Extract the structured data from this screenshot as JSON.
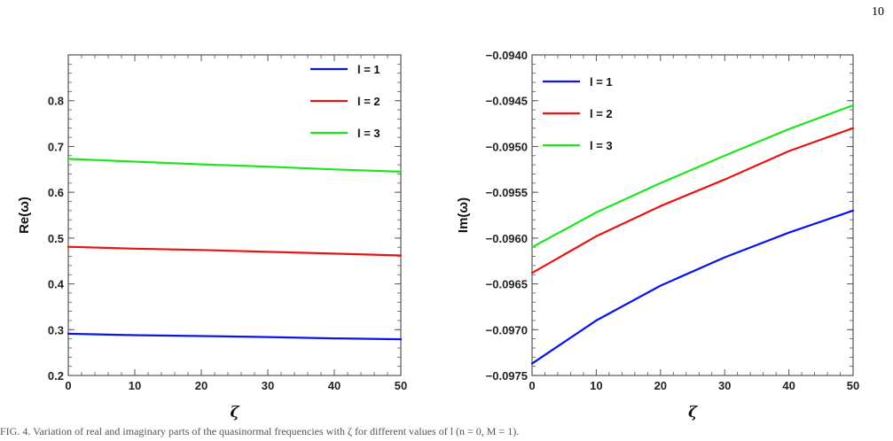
{
  "page": {
    "number": "10",
    "caption": "FIG. 4. Variation of real and imaginary parts of the quasinormal frequencies with ζ for different values of l (n = 0, M = 1)."
  },
  "colors": {
    "l1": "#0a14e6",
    "l2": "#e81414",
    "l3": "#1ee61e",
    "axis": "#555555"
  },
  "chart_data": [
    {
      "type": "line",
      "title": "",
      "xlabel": "ζ",
      "ylabel": "Re(ω)",
      "xlim": [
        0,
        50
      ],
      "ylim": [
        0.2,
        0.9
      ],
      "xticks": [
        0,
        10,
        20,
        30,
        40,
        50
      ],
      "xtick_labels": [
        "0",
        "10",
        "20",
        "30",
        "40",
        "50"
      ],
      "yticks": [
        0.2,
        0.3,
        0.4,
        0.5,
        0.6,
        0.7,
        0.8
      ],
      "ytick_labels": [
        "0.2",
        "0.3",
        "0.4",
        "0.5",
        "0.6",
        "0.7",
        "0.8"
      ],
      "grid": false,
      "legend_position": "top-right",
      "series": [
        {
          "name": "l = 1",
          "color": "#0a14e6",
          "x": [
            0,
            10,
            20,
            30,
            40,
            50
          ],
          "y": [
            0.291,
            0.288,
            0.286,
            0.284,
            0.281,
            0.279
          ]
        },
        {
          "name": "l = 2",
          "color": "#e81414",
          "x": [
            0,
            10,
            20,
            30,
            40,
            50
          ],
          "y": [
            0.481,
            0.477,
            0.474,
            0.47,
            0.466,
            0.462
          ]
        },
        {
          "name": "l = 3",
          "color": "#1ee61e",
          "x": [
            0,
            10,
            20,
            30,
            40,
            50
          ],
          "y": [
            0.673,
            0.667,
            0.661,
            0.656,
            0.65,
            0.645
          ]
        }
      ]
    },
    {
      "type": "line",
      "title": "",
      "xlabel": "ζ",
      "ylabel": "Im(ω)",
      "xlim": [
        0,
        50
      ],
      "ylim": [
        -0.0975,
        -0.094
      ],
      "xticks": [
        0,
        10,
        20,
        30,
        40,
        50
      ],
      "xtick_labels": [
        "0",
        "10",
        "20",
        "30",
        "40",
        "50"
      ],
      "yticks": [
        -0.0975,
        -0.097,
        -0.0965,
        -0.096,
        -0.0955,
        -0.095,
        -0.0945,
        -0.094
      ],
      "ytick_labels": [
        "−0.0975",
        "−0.0970",
        "−0.0965",
        "−0.0960",
        "−0.0955",
        "−0.0950",
        "−0.0945",
        "−0.0940"
      ],
      "grid": false,
      "legend_position": "top-left",
      "series": [
        {
          "name": "l = 1",
          "color": "#0a14e6",
          "x": [
            0,
            10,
            20,
            30,
            40,
            50
          ],
          "y": [
            -0.09737,
            -0.0969,
            -0.09652,
            -0.09621,
            -0.09594,
            -0.0957
          ]
        },
        {
          "name": "l = 2",
          "color": "#e81414",
          "x": [
            0,
            10,
            20,
            30,
            40,
            50
          ],
          "y": [
            -0.09638,
            -0.09598,
            -0.09565,
            -0.09536,
            -0.09505,
            -0.0948
          ]
        },
        {
          "name": "l = 3",
          "color": "#1ee61e",
          "x": [
            0,
            10,
            20,
            30,
            40,
            50
          ],
          "y": [
            -0.0961,
            -0.09572,
            -0.0954,
            -0.0951,
            -0.09481,
            -0.09455
          ]
        }
      ]
    }
  ]
}
